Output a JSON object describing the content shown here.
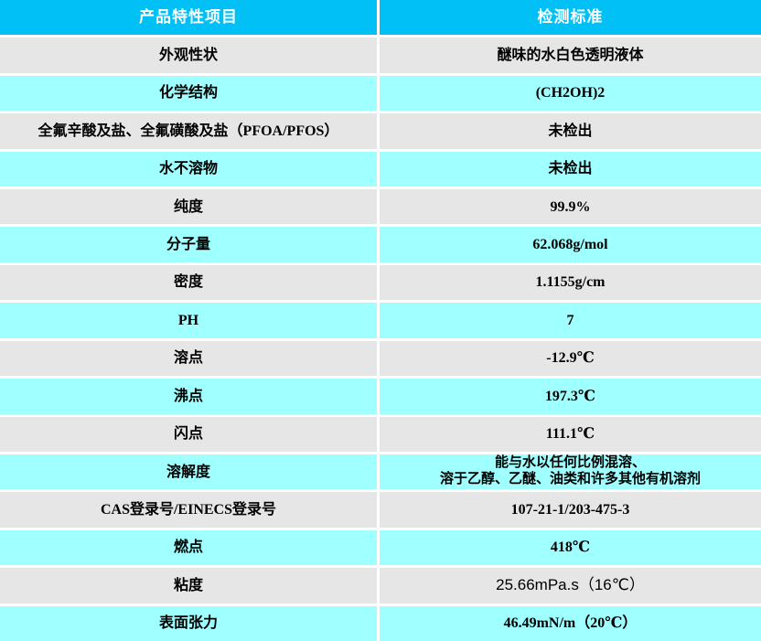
{
  "colors": {
    "header_bg": "#00c0f5",
    "row_gray": "#e6e6e6",
    "row_cyan": "#a0ffff",
    "header_text": "#ffffff",
    "body_text": "#000000"
  },
  "table": {
    "headers": [
      "产品特性项目",
      "检测标准"
    ],
    "rows": [
      {
        "label": "外观性状",
        "value": "醚味的水白色透明液体"
      },
      {
        "label": "化学结构",
        "value": "(CH2OH)2"
      },
      {
        "label": "全氟辛酸及盐、全氟磺酸及盐（PFOA/PFOS）",
        "value": "未检出"
      },
      {
        "label": "水不溶物",
        "value": "未检出"
      },
      {
        "label": "纯度",
        "value": "99.9%"
      },
      {
        "label": "分子量",
        "value": "62.068g/mol"
      },
      {
        "label": "密度",
        "value": "1.1155g/cm"
      },
      {
        "label": "PH",
        "value": "7"
      },
      {
        "label": "溶点",
        "value": "-12.9℃"
      },
      {
        "label": "沸点",
        "value": "197.3℃"
      },
      {
        "label": "闪点",
        "value": "111.1℃"
      },
      {
        "label": "溶解度",
        "value_lines": [
          "能与水以任何比例混溶、",
          "溶于乙醇、乙醚、油类和许多其他有机溶剂"
        ]
      },
      {
        "label": "CAS登录号/EINECS登录号",
        "value": "107-21-1/203-475-3"
      },
      {
        "label": "燃点",
        "value": "418℃"
      },
      {
        "label": "粘度",
        "value": "25.66mPa.s（16℃）"
      },
      {
        "label": "表面张力",
        "value": "46.49mN/m（20℃）"
      }
    ]
  }
}
